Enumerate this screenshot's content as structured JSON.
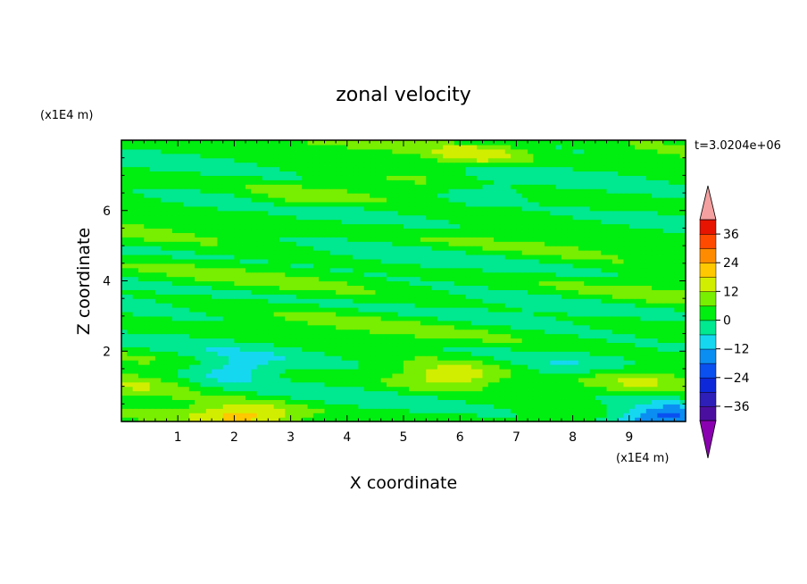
{
  "chart_data": {
    "type": "heatmap",
    "title": "zonal velocity",
    "xlabel": "X coordinate",
    "ylabel": "Z coordinate",
    "x_unit": "(x1E4 m)",
    "y_unit": "(x1E4 m)",
    "time_label": "t=3.0204e+06",
    "xlim": [
      0,
      10
    ],
    "ylim": [
      0,
      8
    ],
    "x_ticks": [
      "1",
      "2",
      "3",
      "4",
      "5",
      "6",
      "7",
      "8",
      "9"
    ],
    "y_ticks": [
      "2",
      "4",
      "6"
    ],
    "colorbar": {
      "levels": [
        -42,
        -36,
        -30,
        -24,
        -18,
        -12,
        -6,
        0,
        6,
        12,
        18,
        24,
        30,
        36,
        42
      ],
      "labels": [
        "36",
        "24",
        "12",
        "0",
        "−12",
        "−24",
        "−36"
      ],
      "colors": [
        "#8a00b0",
        "#4b0fa0",
        "#2d1fb8",
        "#0c28d8",
        "#0a50f0",
        "#0b8ef2",
        "#15d8f0",
        "#00e890",
        "#00ee10",
        "#78ee00",
        "#d2ee00",
        "#ffc800",
        "#ff8c00",
        "#ff4a00",
        "#e61400",
        "#f5a0a0"
      ],
      "over_color": "#f5a0a0",
      "under_color": "#8a00b0"
    },
    "field_summary": {
      "background_value": 2,
      "features": [
        {
          "x": 0.3,
          "z": 1.0,
          "value": 10
        },
        {
          "x": 2.0,
          "z": 1.5,
          "value": -11
        },
        {
          "x": 2.2,
          "z": 0.2,
          "value": 18
        },
        {
          "x": 5.8,
          "z": 1.3,
          "value": 14
        },
        {
          "x": 7.5,
          "z": 1.4,
          "value": -6
        },
        {
          "x": 9.4,
          "z": 1.3,
          "value": 13
        },
        {
          "x": 6.3,
          "z": 7.6,
          "value": 15
        },
        {
          "x": 6.5,
          "z": 6.5,
          "value": -8
        },
        {
          "x": 3.0,
          "z": 6.3,
          "value": 9
        },
        {
          "x": 9.6,
          "z": 0.1,
          "value": -22
        }
      ]
    }
  }
}
